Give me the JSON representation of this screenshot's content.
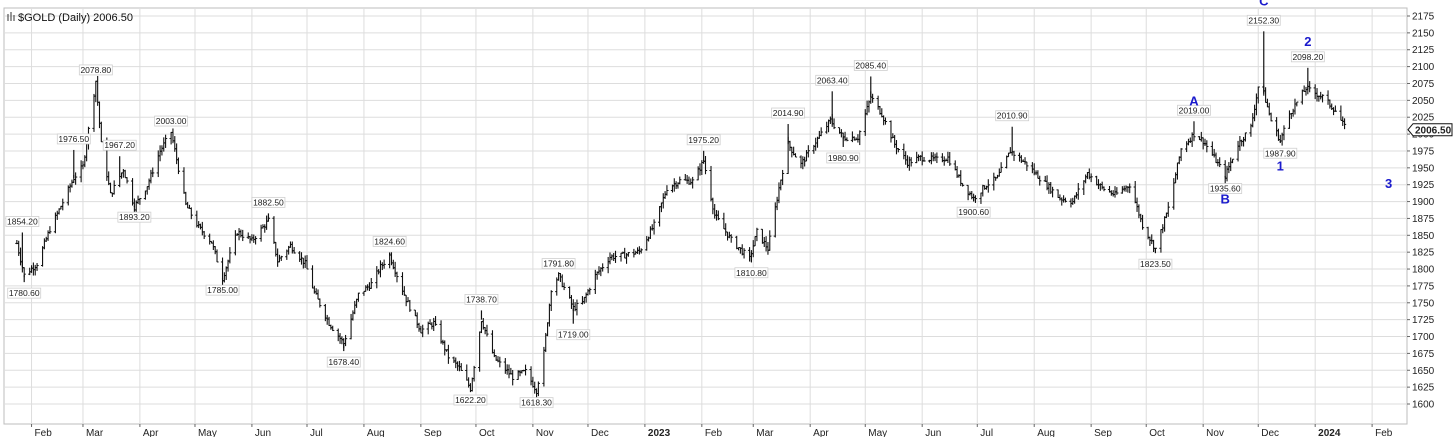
{
  "header": {
    "symbol_icon": "chart-bars-icon",
    "title": "$GOLD (Daily) 2006.50"
  },
  "chart_data": {
    "type": "bar",
    "title": "$GOLD (Daily) 2006.50",
    "last_price": "2006.50",
    "ylim": [
      1600,
      2175
    ],
    "y_ticks": [
      "1600",
      "1625",
      "1650",
      "1675",
      "1700",
      "1725",
      "1750",
      "1775",
      "1800",
      "1825",
      "1850",
      "1875",
      "1900",
      "1925",
      "1950",
      "1975",
      "2000",
      "2025",
      "2050",
      "2075",
      "2100",
      "2125",
      "2150",
      "2175"
    ],
    "x_ticks": [
      "Feb",
      "Mar",
      "Apr",
      "May",
      "Jun",
      "Jul",
      "Aug",
      "Sep",
      "Oct",
      "Nov",
      "Dec",
      "2023",
      "Feb",
      "Mar",
      "Apr",
      "May",
      "Jun",
      "Jul",
      "Aug",
      "Sep",
      "Oct",
      "Nov",
      "Dec",
      "2024",
      "Feb"
    ],
    "grid": true,
    "price_path": [
      [
        "2022-01-24",
        1838
      ],
      [
        "2022-01-28",
        1791
      ],
      [
        "2022-02-04",
        1808
      ],
      [
        "2022-02-11",
        1859
      ],
      [
        "2022-02-18",
        1899
      ],
      [
        "2022-02-24",
        1935
      ],
      [
        "2022-03-01",
        1952
      ],
      [
        "2022-03-08",
        2078.8
      ],
      [
        "2022-03-11",
        1985
      ],
      [
        "2022-03-16",
        1910
      ],
      [
        "2022-03-23",
        1948
      ],
      [
        "2022-03-29",
        1892
      ],
      [
        "2022-04-05",
        1924
      ],
      [
        "2022-04-12",
        1975
      ],
      [
        "2022-04-18",
        2003
      ],
      [
        "2022-04-26",
        1895
      ],
      [
        "2022-05-03",
        1862
      ],
      [
        "2022-05-10",
        1840
      ],
      [
        "2022-05-16",
        1786
      ],
      [
        "2022-05-24",
        1855
      ],
      [
        "2022-06-01",
        1842
      ],
      [
        "2022-06-10",
        1872
      ],
      [
        "2022-06-15",
        1812
      ],
      [
        "2022-06-22",
        1835
      ],
      [
        "2022-06-30",
        1808
      ],
      [
        "2022-07-05",
        1765
      ],
      [
        "2022-07-13",
        1720
      ],
      [
        "2022-07-21",
        1690
      ],
      [
        "2022-07-29",
        1762
      ],
      [
        "2022-08-05",
        1778
      ],
      [
        "2022-08-10",
        1803
      ],
      [
        "2022-08-15",
        1820
      ],
      [
        "2022-08-24",
        1755
      ],
      [
        "2022-09-01",
        1709
      ],
      [
        "2022-09-08",
        1720
      ],
      [
        "2022-09-16",
        1670
      ],
      [
        "2022-09-22",
        1653
      ],
      [
        "2022-09-28",
        1623
      ],
      [
        "2022-10-04",
        1725
      ],
      [
        "2022-10-11",
        1668
      ],
      [
        "2022-10-21",
        1640
      ],
      [
        "2022-10-28",
        1648
      ],
      [
        "2022-11-03",
        1620
      ],
      [
        "2022-11-07",
        1676
      ],
      [
        "2022-11-11",
        1771
      ],
      [
        "2022-11-15",
        1790
      ],
      [
        "2022-11-23",
        1742
      ],
      [
        "2022-11-28",
        1750
      ],
      [
        "2022-12-05",
        1790
      ],
      [
        "2022-12-13",
        1818
      ],
      [
        "2022-12-20",
        1820
      ],
      [
        "2022-12-29",
        1826
      ],
      [
        "2023-01-06",
        1865
      ],
      [
        "2023-01-13",
        1920
      ],
      [
        "2023-01-20",
        1931
      ],
      [
        "2023-01-27",
        1930
      ],
      [
        "2023-02-02",
        1960
      ],
      [
        "2023-02-08",
        1880
      ],
      [
        "2023-02-17",
        1843
      ],
      [
        "2023-02-27",
        1815
      ],
      [
        "2023-03-03",
        1855
      ],
      [
        "2023-03-09",
        1830
      ],
      [
        "2023-03-15",
        1920
      ],
      [
        "2023-03-20",
        1985
      ],
      [
        "2023-03-27",
        1955
      ],
      [
        "2023-04-03",
        1985
      ],
      [
        "2023-04-12",
        2020
      ],
      [
        "2023-04-19",
        1995
      ],
      [
        "2023-04-27",
        1995
      ],
      [
        "2023-05-04",
        2055
      ],
      [
        "2023-05-10",
        2030
      ],
      [
        "2023-05-17",
        1985
      ],
      [
        "2023-05-24",
        1958
      ],
      [
        "2023-05-31",
        1965
      ],
      [
        "2023-06-09",
        1962
      ],
      [
        "2023-06-15",
        1965
      ],
      [
        "2023-06-23",
        1925
      ],
      [
        "2023-06-29",
        1905
      ],
      [
        "2023-07-06",
        1925
      ],
      [
        "2023-07-12",
        1935
      ],
      [
        "2023-07-19",
        1975
      ],
      [
        "2023-07-28",
        1955
      ],
      [
        "2023-08-04",
        1935
      ],
      [
        "2023-08-15",
        1905
      ],
      [
        "2023-08-22",
        1900
      ],
      [
        "2023-08-30",
        1942
      ],
      [
        "2023-09-07",
        1920
      ],
      [
        "2023-09-14",
        1910
      ],
      [
        "2023-09-22",
        1925
      ],
      [
        "2023-09-29",
        1865
      ],
      [
        "2023-10-06",
        1830
      ],
      [
        "2023-10-13",
        1890
      ],
      [
        "2023-10-20",
        1978
      ],
      [
        "2023-10-27",
        2000
      ],
      [
        "2023-11-01",
        1990
      ],
      [
        "2023-11-07",
        1965
      ],
      [
        "2023-11-13",
        1938
      ],
      [
        "2023-11-20",
        1985
      ],
      [
        "2023-11-27",
        2010
      ],
      [
        "2023-12-01",
        2070
      ],
      [
        "2023-12-04",
        2060
      ],
      [
        "2023-12-08",
        2020
      ],
      [
        "2023-12-13",
        1990
      ],
      [
        "2023-12-18",
        2030
      ],
      [
        "2023-12-27",
        2068
      ],
      [
        "2024-01-05",
        2055
      ],
      [
        "2024-01-12",
        2035
      ],
      [
        "2024-01-17",
        2010
      ]
    ],
    "annotations": [
      {
        "text": "1854.20",
        "date": "2022-01-27",
        "price": 1854.2,
        "pos": "above"
      },
      {
        "text": "1780.60",
        "date": "2022-01-28",
        "price": 1780.6,
        "pos": "below"
      },
      {
        "text": "1976.50",
        "date": "2022-02-24",
        "price": 1976.5,
        "pos": "above"
      },
      {
        "text": "2078.80",
        "date": "2022-03-08",
        "price": 2078.8,
        "pos": "above"
      },
      {
        "text": "1967.20",
        "date": "2022-03-21",
        "price": 1967.2,
        "pos": "above"
      },
      {
        "text": "1893.20",
        "date": "2022-03-29",
        "price": 1893.2,
        "pos": "below"
      },
      {
        "text": "2003.00",
        "date": "2022-04-18",
        "price": 2003.0,
        "pos": "above"
      },
      {
        "text": "1785.00",
        "date": "2022-05-16",
        "price": 1785.0,
        "pos": "below"
      },
      {
        "text": "1882.50",
        "date": "2022-06-10",
        "price": 1882.5,
        "pos": "above"
      },
      {
        "text": "1678.40",
        "date": "2022-07-21",
        "price": 1678.4,
        "pos": "below"
      },
      {
        "text": "1824.60",
        "date": "2022-08-15",
        "price": 1824.6,
        "pos": "above"
      },
      {
        "text": "1738.70",
        "date": "2022-10-04",
        "price": 1738.7,
        "pos": "above"
      },
      {
        "text": "1622.20",
        "date": "2022-09-28",
        "price": 1622.2,
        "pos": "below"
      },
      {
        "text": "1618.30",
        "date": "2022-11-03",
        "price": 1618.3,
        "pos": "below"
      },
      {
        "text": "1791.80",
        "date": "2022-11-15",
        "price": 1791.8,
        "pos": "above"
      },
      {
        "text": "1719.00",
        "date": "2022-11-23",
        "price": 1719.0,
        "pos": "below"
      },
      {
        "text": "1975.20",
        "date": "2023-02-02",
        "price": 1975.2,
        "pos": "above"
      },
      {
        "text": "1810.80",
        "date": "2023-02-28",
        "price": 1810.8,
        "pos": "below"
      },
      {
        "text": "2014.90",
        "date": "2023-03-20",
        "price": 2014.9,
        "pos": "above"
      },
      {
        "text": "2063.40",
        "date": "2023-04-13",
        "price": 2063.4,
        "pos": "above"
      },
      {
        "text": "1980.90",
        "date": "2023-04-19",
        "price": 1980.9,
        "pos": "below"
      },
      {
        "text": "2085.40",
        "date": "2023-05-04",
        "price": 2085.4,
        "pos": "above"
      },
      {
        "text": "1900.60",
        "date": "2023-06-29",
        "price": 1900.6,
        "pos": "below"
      },
      {
        "text": "2010.90",
        "date": "2023-07-20",
        "price": 2010.9,
        "pos": "above"
      },
      {
        "text": "1823.50",
        "date": "2023-10-06",
        "price": 1823.5,
        "pos": "below"
      },
      {
        "text": "2019.00",
        "date": "2023-10-27",
        "price": 2019.0,
        "pos": "above"
      },
      {
        "text": "1935.60",
        "date": "2023-11-13",
        "price": 1935.6,
        "pos": "below"
      },
      {
        "text": "2152.30",
        "date": "2023-12-04",
        "price": 2152.3,
        "pos": "above"
      },
      {
        "text": "1987.90",
        "date": "2023-12-13",
        "price": 1987.9,
        "pos": "below"
      },
      {
        "text": "2098.20",
        "date": "2023-12-28",
        "price": 2098.2,
        "pos": "above"
      }
    ],
    "wave_labels": [
      {
        "text": "A",
        "date": "2023-10-27",
        "price": 2019.0
      },
      {
        "text": "B",
        "date": "2023-11-13",
        "price": 1935.6
      },
      {
        "text": "C",
        "date": "2023-12-04",
        "price": 2152.3
      },
      {
        "text": "1",
        "date": "2023-12-13",
        "price": 1987.9
      },
      {
        "text": "2",
        "date": "2023-12-28",
        "price": 2098.2
      },
      {
        "text": "3",
        "date": "2024-02-10",
        "price": 1920.0
      }
    ],
    "colors": {
      "bars": "#111111",
      "grid": "#dddddd",
      "wave_labels": "#1a1acc",
      "last_price_box": "#ffffff"
    }
  }
}
